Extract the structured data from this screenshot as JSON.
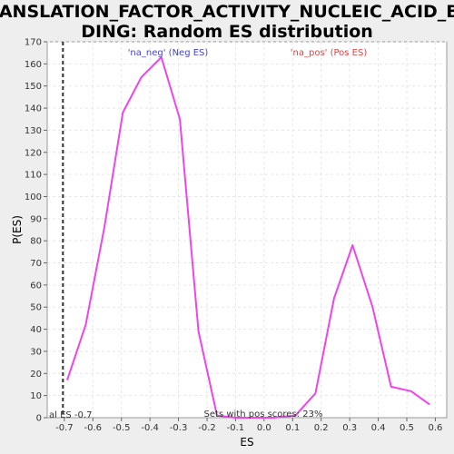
{
  "chart_data": {
    "type": "line",
    "title_lines": [
      "TRANSLATION_FACTOR_ACTIVITY_NUCLEIC_ACID_BIN",
      "DING: Random ES distribution"
    ],
    "xlabel": "ES",
    "ylabel": "P(ES)",
    "xlim": [
      -0.76,
      0.64
    ],
    "ylim": [
      0,
      170
    ],
    "x_ticks": [
      -0.7,
      -0.6,
      -0.5,
      -0.4,
      -0.3,
      -0.2,
      -0.1,
      0.0,
      0.1,
      0.2,
      0.3,
      0.4,
      0.5,
      0.6
    ],
    "x_tick_labels": [
      "-0.7",
      "-0.6",
      "-0.5",
      "-0.4",
      "-0.3",
      "-0.2",
      "-0.1",
      "0.0",
      "0.1",
      "0.2",
      "0.3",
      "0.4",
      "0.5",
      "0.6"
    ],
    "y_ticks": [
      0,
      10,
      20,
      30,
      40,
      50,
      60,
      70,
      80,
      90,
      100,
      110,
      120,
      130,
      140,
      150,
      160,
      170
    ],
    "grid": true,
    "series": [
      {
        "color": "#ee44ee",
        "x": [
          -0.69,
          -0.625,
          -0.56,
          -0.495,
          -0.43,
          -0.36,
          -0.295,
          -0.23,
          -0.165,
          -0.1,
          -0.035,
          0.03,
          0.11,
          0.18,
          0.245,
          0.31,
          0.38,
          0.445,
          0.515,
          0.58
        ],
        "y": [
          17,
          42,
          86,
          138,
          154,
          163,
          135,
          39,
          1,
          0,
          0,
          0,
          1,
          11,
          54,
          78,
          50,
          14,
          12,
          6
        ]
      }
    ],
    "vline": {
      "x": -0.705,
      "style": "dashed",
      "color": "#333333"
    },
    "annotations": {
      "neg": {
        "text": "'na_neg' (Neg ES)",
        "color": "#4444cc"
      },
      "pos": {
        "text": "'na_pos' (Pos ES)",
        "color": "#dd4444"
      },
      "actual": {
        "text": "al ES -0.7"
      },
      "pos_score": {
        "text": "Sets with pos scores: 23%"
      }
    }
  }
}
